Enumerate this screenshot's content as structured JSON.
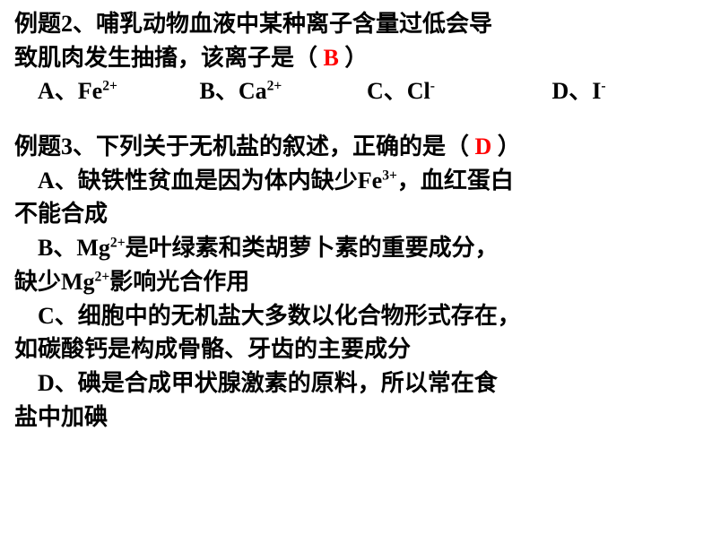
{
  "colors": {
    "text": "#000000",
    "answer": "#ff0000",
    "background": "#ffffff"
  },
  "typography": {
    "font_family": "SimSun",
    "font_weight": "bold",
    "font_size_pt": 20,
    "line_height": 1.45
  },
  "q2": {
    "text_1": "例题2、哺乳动物血液中某种离子含量过低会导",
    "text_2a": "致肌肉发生抽搐，该离子是（",
    "text_2b": "）",
    "answer": "B",
    "options": {
      "a_label": "A、",
      "a_ion": "Fe",
      "a_charge": "2+",
      "b_label": "B、",
      "b_ion": "Ca",
      "b_charge": "2+",
      "c_label": "C、",
      "c_ion": "Cl",
      "c_charge": "-",
      "d_label": "D、",
      "d_ion": "I",
      "d_charge": "-"
    }
  },
  "q3": {
    "text_1a": "例题3、下列关于无机盐的叙述，正确的是（",
    "text_1b": "）",
    "answer": "D",
    "opt_a": {
      "l1a": "A、缺铁性贫血是因为体内缺少Fe",
      "l1sup": "3+",
      "l1b": "，血红蛋白",
      "l2": "不能合成"
    },
    "opt_b": {
      "l1a": "B、Mg",
      "l1sup": "2+",
      "l1b": "是叶绿素和类胡萝卜素的重要成分，",
      "l2a": "缺少Mg",
      "l2sup": "2+",
      "l2b": "影响光合作用"
    },
    "opt_c": {
      "l1": "C、细胞中的无机盐大多数以化合物形式存在，",
      "l2": "如碳酸钙是构成骨骼、牙齿的主要成分"
    },
    "opt_d": {
      "l1": "D、碘是合成甲状腺激素的原料，所以常在食",
      "l2": "盐中加碘"
    }
  }
}
